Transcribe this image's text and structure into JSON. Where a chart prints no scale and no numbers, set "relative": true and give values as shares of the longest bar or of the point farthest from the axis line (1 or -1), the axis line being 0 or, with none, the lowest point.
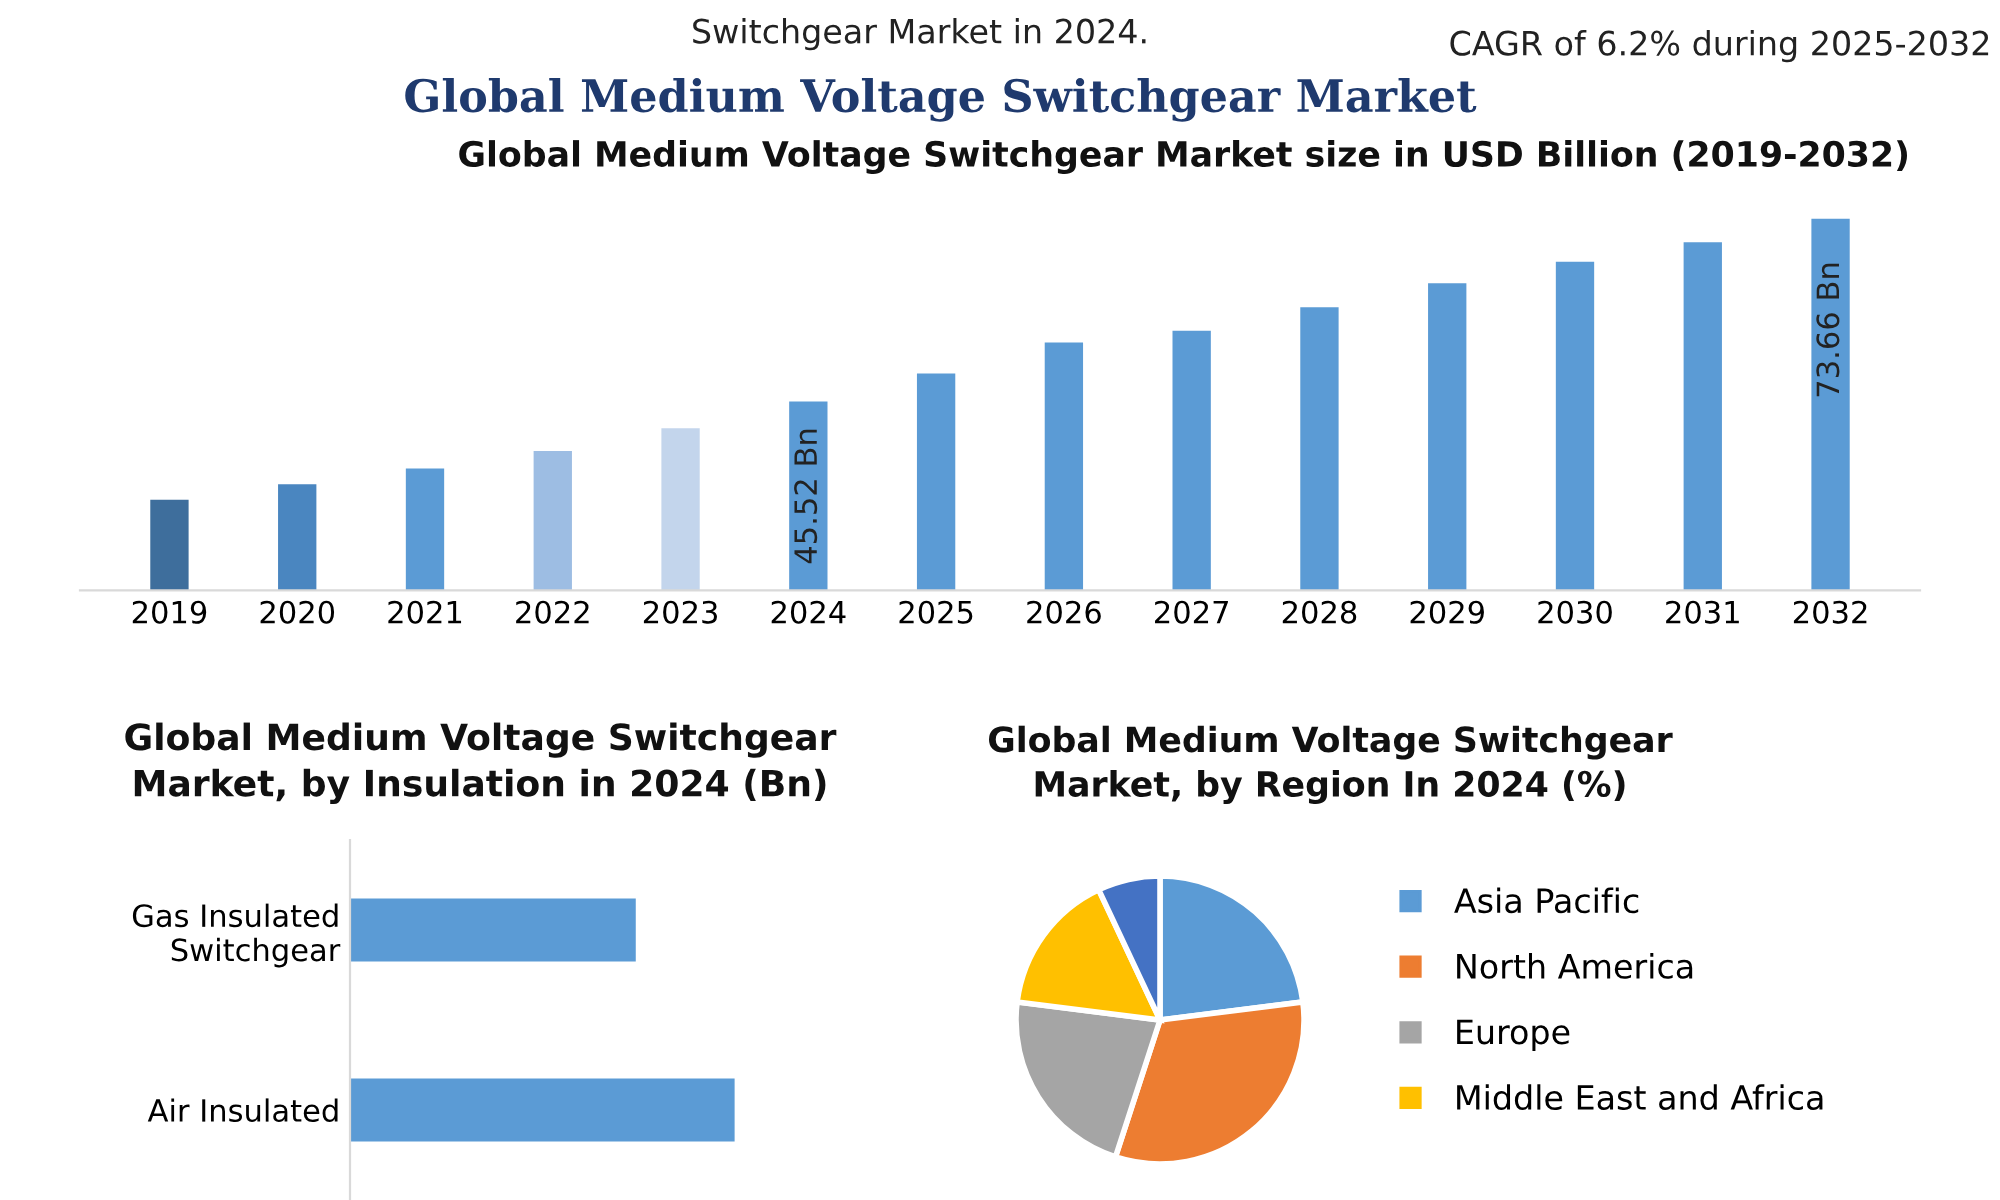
{
  "chart_data": [
    {
      "type": "bar",
      "title": "Global Medium Voltage Switchgear Market size in USD Billion (2019-2032)",
      "annotations": [
        "Switchgear Market in 2024.",
        "CAGR of 6.2% during 2025-2032",
        "Global Medium Voltage Switchgear Market"
      ],
      "categories": [
        "2019",
        "2020",
        "2021",
        "2022",
        "2023",
        "2024",
        "2025",
        "2026",
        "2027",
        "2028",
        "2029",
        "2030",
        "2031",
        "2032"
      ],
      "values": [
        30.4,
        32.8,
        35.2,
        37.9,
        41.4,
        45.52,
        49.8,
        54.6,
        56.4,
        60.0,
        63.7,
        67.0,
        70.0,
        73.66
      ],
      "colors": [
        "#3e6e9c",
        "#4a86c0",
        "#5b9bd5",
        "#9dbde3",
        "#c3d5ec",
        "#5b9bd5",
        "#5b9bd5",
        "#5b9bd5",
        "#5b9bd5",
        "#5b9bd5",
        "#5b9bd5",
        "#5b9bd5",
        "#5b9bd5",
        "#5b9bd5"
      ],
      "value_labels": [
        null,
        null,
        null,
        null,
        null,
        "45.52 Bn",
        null,
        null,
        null,
        null,
        null,
        null,
        null,
        "73.66 Bn"
      ],
      "ylim": [
        16.47,
        73.66
      ],
      "tick_labels": "x",
      "grid": false
    },
    {
      "type": "bar",
      "orientation": "horizontal",
      "relative": true,
      "title": "Global Medium Voltage Switchgear\nMarket, by Insulation in 2024 (Bn)",
      "categories": [
        "Gas Insulated\nSwitchgear",
        "Air Insulated"
      ],
      "values": [
        0.743,
        1
      ],
      "color": "#5b9bd5",
      "grid": false
    },
    {
      "type": "pie",
      "title": "Global Medium Voltage Switchgear\nMarket, by Region In 2024 (%)",
      "categories": [
        "Asia Pacific",
        "North America",
        "Europe",
        "Middle East and Africa",
        null
      ],
      "values": [
        23,
        32,
        22,
        16,
        7
      ],
      "colors": [
        "#5b9bd5",
        "#ed7d31",
        "#a5a5a5",
        "#ffc000",
        "#4472c4"
      ],
      "legend": "right"
    }
  ]
}
